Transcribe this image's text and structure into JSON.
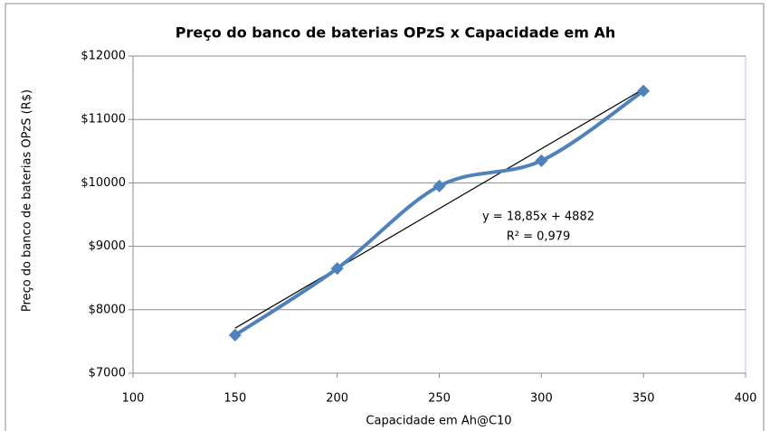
{
  "chart_data": {
    "type": "line",
    "title": "Preço do banco de baterias OPzS x Capacidade em Ah",
    "xlabel": "Capacidade em Ah@C10",
    "ylabel": "Preço do banco de baterias OPzS (R$)",
    "x": [
      150,
      200,
      250,
      300,
      350
    ],
    "series": [
      {
        "color": "#4f81bd",
        "values": [
          7600,
          8650,
          9950,
          10350,
          11450
        ]
      }
    ],
    "xlim": [
      100,
      400
    ],
    "xticks": [
      100,
      150,
      200,
      250,
      300,
      350,
      400
    ],
    "ylim": [
      7000,
      12000
    ],
    "yticks": [
      {
        "value": 7000,
        "label": "$7000"
      },
      {
        "value": 8000,
        "label": "$8000"
      },
      {
        "value": 9000,
        "label": "$9000"
      },
      {
        "value": 10000,
        "label": "$10000"
      },
      {
        "value": 11000,
        "label": "$11000"
      },
      {
        "value": 12000,
        "label": "$12000"
      }
    ],
    "grid": true,
    "trendline": {
      "slope": 18.85,
      "intercept": 4882,
      "color": "#000000",
      "equation": "y = 18,85x + 4882",
      "r2": "R² = 0,979"
    }
  }
}
